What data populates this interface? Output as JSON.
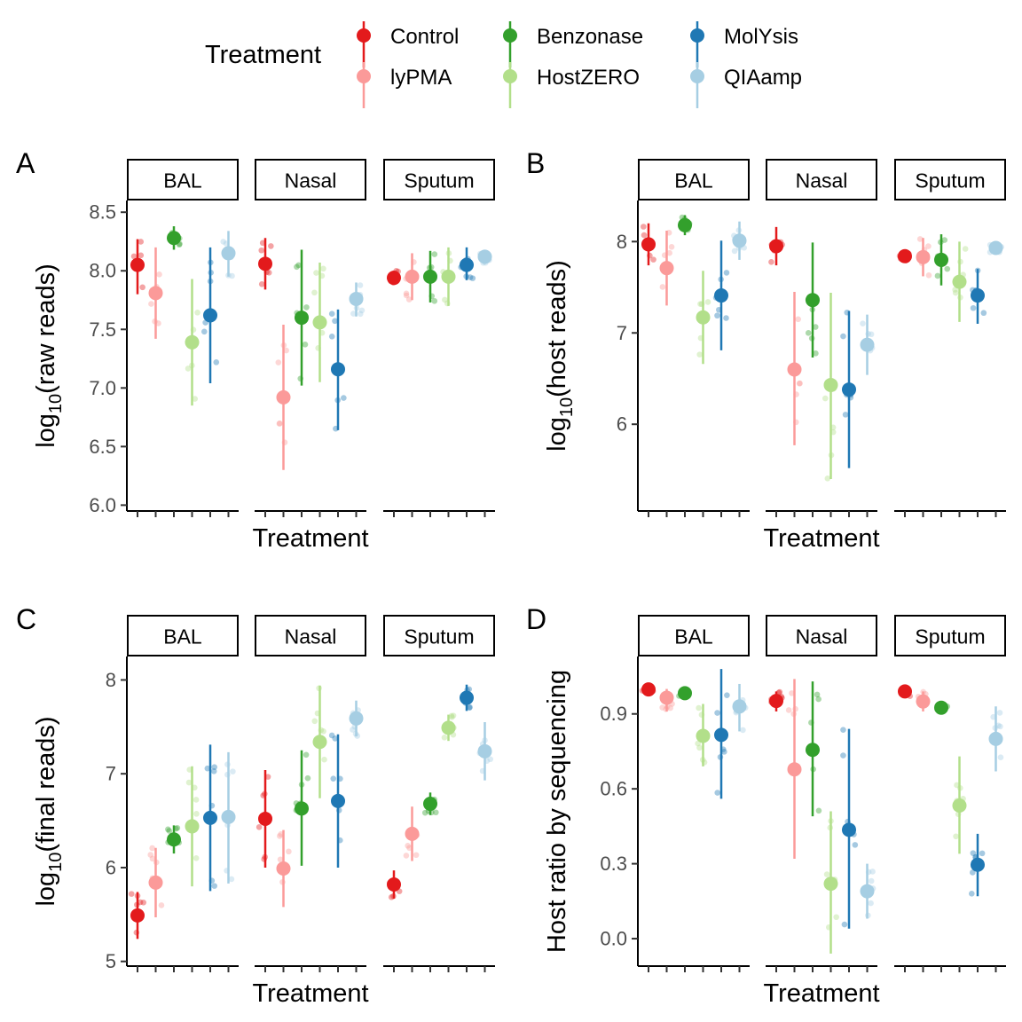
{
  "legend": {
    "title": "Treatment",
    "items": [
      {
        "label": "Control",
        "color": "#E31A1C"
      },
      {
        "label": "lyPMA",
        "color": "#FB9A99"
      },
      {
        "label": "Benzonase",
        "color": "#33A02C"
      },
      {
        "label": "HostZERO",
        "color": "#B2DF8A"
      },
      {
        "label": "MolYsis",
        "color": "#1F78B4"
      },
      {
        "label": "QIAamp",
        "color": "#A6CEE3"
      }
    ]
  },
  "chart_data": [
    {
      "type": "scatter",
      "panel_label": "A",
      "ylabel_base": "log",
      "ylabel_sub": "10",
      "ylabel_rest": "(raw reads)",
      "xlabel": "Treatment",
      "ylim": [
        5.95,
        8.6
      ],
      "yticks": [
        6.0,
        6.5,
        7.0,
        7.5,
        8.0,
        8.5
      ],
      "ytick_labels": [
        "6.0",
        "6.5",
        "7.0",
        "7.5",
        "8.0",
        "8.5"
      ],
      "facets": [
        {
          "label": "BAL",
          "series": [
            {
              "mean": 8.05,
              "lo": 7.8,
              "hi": 8.27
            },
            {
              "mean": 7.81,
              "lo": 7.42,
              "hi": 8.2
            },
            {
              "mean": 8.28,
              "lo": 8.18,
              "hi": 8.38
            },
            {
              "mean": 7.39,
              "lo": 6.85,
              "hi": 7.93
            },
            {
              "mean": 7.62,
              "lo": 7.04,
              "hi": 8.2
            },
            {
              "mean": 8.15,
              "lo": 7.95,
              "hi": 8.34
            }
          ]
        },
        {
          "label": "Nasal",
          "series": [
            {
              "mean": 8.06,
              "lo": 7.84,
              "hi": 8.28
            },
            {
              "mean": 6.92,
              "lo": 6.3,
              "hi": 7.54
            },
            {
              "mean": 7.6,
              "lo": 7.02,
              "hi": 8.18
            },
            {
              "mean": 7.56,
              "lo": 7.05,
              "hi": 8.07
            },
            {
              "mean": 7.16,
              "lo": 6.64,
              "hi": 7.67
            },
            {
              "mean": 7.76,
              "lo": 7.61,
              "hi": 7.9
            }
          ]
        },
        {
          "label": "Sputum",
          "series": [
            {
              "mean": 7.94,
              "lo": 7.88,
              "hi": 8.0
            },
            {
              "mean": 7.95,
              "lo": 7.75,
              "hi": 8.15
            },
            {
              "mean": 7.95,
              "lo": 7.73,
              "hi": 8.17
            },
            {
              "mean": 7.95,
              "lo": 7.7,
              "hi": 8.2
            },
            {
              "mean": 8.05,
              "lo": 7.92,
              "hi": 8.2
            },
            {
              "mean": 8.12,
              "lo": 8.06,
              "hi": 8.18
            }
          ]
        }
      ]
    },
    {
      "type": "scatter",
      "panel_label": "B",
      "ylabel_base": "log",
      "ylabel_sub": "10",
      "ylabel_rest": "(host reads)",
      "xlabel": "Treatment",
      "ylim": [
        5.05,
        8.45
      ],
      "yticks": [
        6,
        7,
        8
      ],
      "ytick_labels": [
        "6",
        "7",
        "8"
      ],
      "facets": [
        {
          "label": "BAL",
          "series": [
            {
              "mean": 7.97,
              "lo": 7.74,
              "hi": 8.2
            },
            {
              "mean": 7.71,
              "lo": 7.3,
              "hi": 8.12
            },
            {
              "mean": 8.18,
              "lo": 8.07,
              "hi": 8.29
            },
            {
              "mean": 7.17,
              "lo": 6.66,
              "hi": 7.68
            },
            {
              "mean": 7.41,
              "lo": 6.81,
              "hi": 8.01
            },
            {
              "mean": 8.01,
              "lo": 7.8,
              "hi": 8.22
            }
          ]
        },
        {
          "label": "Nasal",
          "series": [
            {
              "mean": 7.95,
              "lo": 7.74,
              "hi": 8.16
            },
            {
              "mean": 6.6,
              "lo": 5.77,
              "hi": 7.45
            },
            {
              "mean": 7.36,
              "lo": 6.73,
              "hi": 7.99
            },
            {
              "mean": 6.43,
              "lo": 5.4,
              "hi": 7.44
            },
            {
              "mean": 6.38,
              "lo": 5.52,
              "hi": 7.24
            },
            {
              "mean": 6.87,
              "lo": 6.54,
              "hi": 7.2
            }
          ]
        },
        {
          "label": "Sputum",
          "series": [
            {
              "mean": 7.84,
              "lo": 7.8,
              "hi": 7.88
            },
            {
              "mean": 7.83,
              "lo": 7.62,
              "hi": 8.04
            },
            {
              "mean": 7.8,
              "lo": 7.52,
              "hi": 8.08
            },
            {
              "mean": 7.56,
              "lo": 7.12,
              "hi": 8.0
            },
            {
              "mean": 7.41,
              "lo": 7.1,
              "hi": 7.7
            },
            {
              "mean": 7.93,
              "lo": 7.88,
              "hi": 7.98
            }
          ]
        }
      ]
    },
    {
      "type": "scatter",
      "panel_label": "C",
      "ylabel_base": "log",
      "ylabel_sub": "10",
      "ylabel_rest": "(final reads)",
      "xlabel": "Treatment",
      "ylim": [
        4.95,
        8.25
      ],
      "yticks": [
        5,
        6,
        7,
        8
      ],
      "ytick_labels": [
        "5",
        "6",
        "7",
        "8"
      ],
      "facets": [
        {
          "label": "BAL",
          "series": [
            {
              "mean": 5.49,
              "lo": 5.24,
              "hi": 5.74
            },
            {
              "mean": 5.84,
              "lo": 5.47,
              "hi": 6.21
            },
            {
              "mean": 6.3,
              "lo": 6.15,
              "hi": 6.45
            },
            {
              "mean": 6.44,
              "lo": 5.8,
              "hi": 7.08
            },
            {
              "mean": 6.53,
              "lo": 5.75,
              "hi": 7.31
            },
            {
              "mean": 6.54,
              "lo": 5.83,
              "hi": 7.23
            }
          ]
        },
        {
          "label": "Nasal",
          "series": [
            {
              "mean": 6.52,
              "lo": 6.0,
              "hi": 7.04
            },
            {
              "mean": 5.99,
              "lo": 5.58,
              "hi": 6.4
            },
            {
              "mean": 6.63,
              "lo": 6.02,
              "hi": 7.25
            },
            {
              "mean": 7.34,
              "lo": 6.74,
              "hi": 7.94
            },
            {
              "mean": 6.71,
              "lo": 6.0,
              "hi": 7.42
            },
            {
              "mean": 7.59,
              "lo": 7.4,
              "hi": 7.78
            }
          ]
        },
        {
          "label": "Sputum",
          "series": [
            {
              "mean": 5.82,
              "lo": 5.67,
              "hi": 5.97
            },
            {
              "mean": 6.36,
              "lo": 6.07,
              "hi": 6.65
            },
            {
              "mean": 6.68,
              "lo": 6.56,
              "hi": 6.8
            },
            {
              "mean": 7.49,
              "lo": 7.35,
              "hi": 7.63
            },
            {
              "mean": 7.81,
              "lo": 7.67,
              "hi": 7.95
            },
            {
              "mean": 7.24,
              "lo": 6.93,
              "hi": 7.55
            }
          ]
        }
      ]
    },
    {
      "type": "scatter",
      "panel_label": "D",
      "ylabel_base": "Host ratio by sequencing",
      "ylabel_sub": "",
      "ylabel_rest": "",
      "xlabel": "Treatment",
      "ylim": [
        -0.11,
        1.13
      ],
      "yticks": [
        0.0,
        0.3,
        0.6,
        0.9
      ],
      "ytick_labels": [
        "0.0",
        "0.3",
        "0.6",
        "0.9"
      ],
      "facets": [
        {
          "label": "BAL",
          "series": [
            {
              "mean": 0.998,
              "lo": 0.99,
              "hi": 1.0
            },
            {
              "mean": 0.965,
              "lo": 0.91,
              "hi": 1.0
            },
            {
              "mean": 0.983,
              "lo": 0.97,
              "hi": 0.995
            },
            {
              "mean": 0.812,
              "lo": 0.69,
              "hi": 0.94
            },
            {
              "mean": 0.816,
              "lo": 0.56,
              "hi": 1.08
            },
            {
              "mean": 0.93,
              "lo": 0.83,
              "hi": 1.02
            }
          ]
        },
        {
          "label": "Nasal",
          "series": [
            {
              "mean": 0.952,
              "lo": 0.91,
              "hi": 0.99
            },
            {
              "mean": 0.678,
              "lo": 0.32,
              "hi": 1.04
            },
            {
              "mean": 0.756,
              "lo": 0.49,
              "hi": 1.03
            },
            {
              "mean": 0.22,
              "lo": -0.06,
              "hi": 0.51
            },
            {
              "mean": 0.436,
              "lo": 0.04,
              "hi": 0.84
            },
            {
              "mean": 0.19,
              "lo": 0.08,
              "hi": 0.3
            }
          ]
        },
        {
          "label": "Sputum",
          "series": [
            {
              "mean": 0.99,
              "lo": 0.97,
              "hi": 1.0
            },
            {
              "mean": 0.95,
              "lo": 0.91,
              "hi": 0.99
            },
            {
              "mean": 0.925,
              "lo": 0.91,
              "hi": 0.94
            },
            {
              "mean": 0.533,
              "lo": 0.34,
              "hi": 0.73
            },
            {
              "mean": 0.296,
              "lo": 0.17,
              "hi": 0.42
            },
            {
              "mean": 0.8,
              "lo": 0.67,
              "hi": 0.93
            }
          ]
        }
      ]
    }
  ]
}
